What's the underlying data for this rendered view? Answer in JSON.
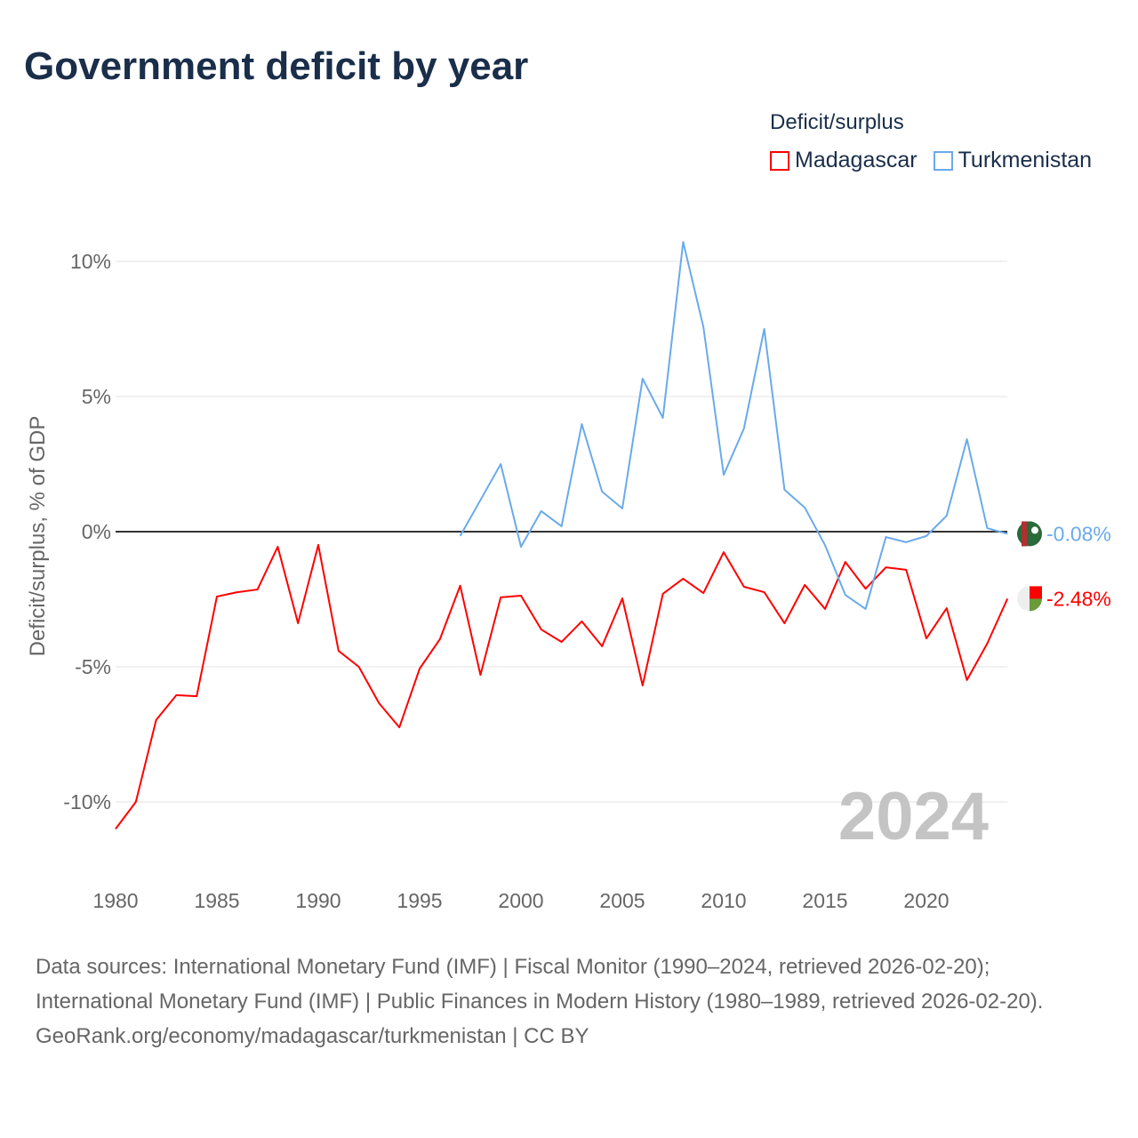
{
  "title": "Government deficit by year",
  "legend": {
    "title": "Deficit/surplus",
    "items": [
      {
        "name": "Madagascar",
        "color": "#ff0000"
      },
      {
        "name": "Turkmenistan",
        "color": "#6aaaea"
      }
    ]
  },
  "watermark_year": "2024",
  "footer": {
    "sources": "Data sources: International Monetary Fund (IMF) | Fiscal Monitor (1990–2024, retrieved 2026-02-20); International Monetary Fund (IMF) | Public Finances in Modern History (1980–1989, retrieved 2026-02-20).",
    "credit": "GeoRank.org/economy/madagascar/turkmenistan | CC BY"
  },
  "chart_data": {
    "type": "line",
    "title": "Government deficit by year",
    "xlabel": "",
    "ylabel": "Deficit/surplus, % of GDP",
    "xlim": [
      1980,
      2024
    ],
    "ylim": [
      -12,
      11
    ],
    "yticks": [
      {
        "v": 10,
        "label": "10%"
      },
      {
        "v": 5,
        "label": "5%"
      },
      {
        "v": 0,
        "label": "0%"
      },
      {
        "v": -5,
        "label": "-5%"
      },
      {
        "v": -10,
        "label": "-10%"
      }
    ],
    "xticks": [
      {
        "v": 1980,
        "label": "1980"
      },
      {
        "v": 1985,
        "label": "1985"
      },
      {
        "v": 1990,
        "label": "1990"
      },
      {
        "v": 1995,
        "label": "1995"
      },
      {
        "v": 2000,
        "label": "2000"
      },
      {
        "v": 2005,
        "label": "2005"
      },
      {
        "v": 2010,
        "label": "2010"
      },
      {
        "v": 2015,
        "label": "2015"
      },
      {
        "v": 2020,
        "label": "2020"
      }
    ],
    "grid": true,
    "legend_position": "top-right",
    "series": [
      {
        "name": "Madagascar",
        "color": "#ff0000",
        "end_label": "-2.48%",
        "start_year": 1980,
        "values": [
          -11.0,
          -10.0,
          -6.97,
          -6.05,
          -6.09,
          -2.4,
          -2.24,
          -2.14,
          -0.56,
          -3.39,
          -0.49,
          -4.41,
          -5.0,
          -6.35,
          -7.24,
          -5.07,
          -3.98,
          -2.0,
          -5.3,
          -2.43,
          -2.37,
          -3.62,
          -4.08,
          -3.32,
          -4.24,
          -2.47,
          -5.69,
          -2.3,
          -1.74,
          -2.27,
          -0.76,
          -2.04,
          -2.24,
          -3.39,
          -1.97,
          -2.86,
          -1.12,
          -2.11,
          -1.32,
          -1.41,
          -3.95,
          -2.83,
          -5.49,
          -4.14,
          -2.48
        ]
      },
      {
        "name": "Turkmenistan",
        "color": "#6aaaea",
        "end_label": "-0.08%",
        "start_year": 1997,
        "values": [
          -0.16,
          1.17,
          2.5,
          -0.56,
          0.76,
          0.2,
          3.98,
          1.48,
          0.86,
          5.66,
          4.21,
          10.72,
          7.57,
          2.1,
          3.82,
          7.5,
          1.55,
          0.89,
          -0.5,
          -2.34,
          -2.86,
          -0.2,
          -0.39,
          -0.16,
          0.59,
          3.42,
          0.13,
          -0.08
        ]
      }
    ]
  }
}
